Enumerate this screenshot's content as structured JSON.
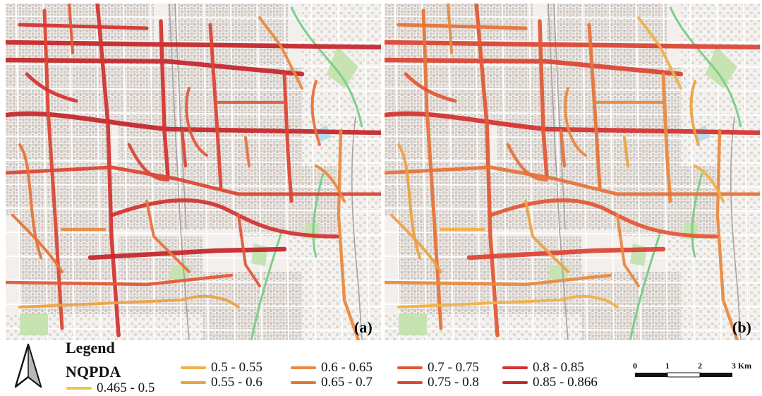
{
  "panels": [
    {
      "label": "(a)"
    },
    {
      "label": "(b)"
    }
  ],
  "legend": {
    "title": "Legend",
    "layer_name": "NQPDA",
    "classes": [
      {
        "label": "0.465 - 0.5",
        "color": "#f0c24e"
      },
      {
        "label": "0.5 - 0.55",
        "color": "#eeb14a"
      },
      {
        "label": "0.55 - 0.6",
        "color": "#eba246"
      },
      {
        "label": "0.6 - 0.65",
        "color": "#e88a40"
      },
      {
        "label": "0.65 - 0.7",
        "color": "#e5743b"
      },
      {
        "label": "0.7 - 0.75",
        "color": "#e05a38"
      },
      {
        "label": "0.75 - 0.8",
        "color": "#db4736"
      },
      {
        "label": "0.8 - 0.85",
        "color": "#d33533"
      },
      {
        "label": "0.85 - 0.866",
        "color": "#c5292d"
      }
    ]
  },
  "scale_bar": {
    "ticks": [
      "0",
      "1",
      "2",
      "3 Km"
    ]
  },
  "colors": {
    "building": "#d3cbc6",
    "building_dark": "#c6bcb6",
    "park": "#c6e3b1",
    "water": "#b6dcef",
    "rail": "#a3a3a3",
    "minor_road": "#ffffff",
    "basemap": "#f2efec"
  }
}
